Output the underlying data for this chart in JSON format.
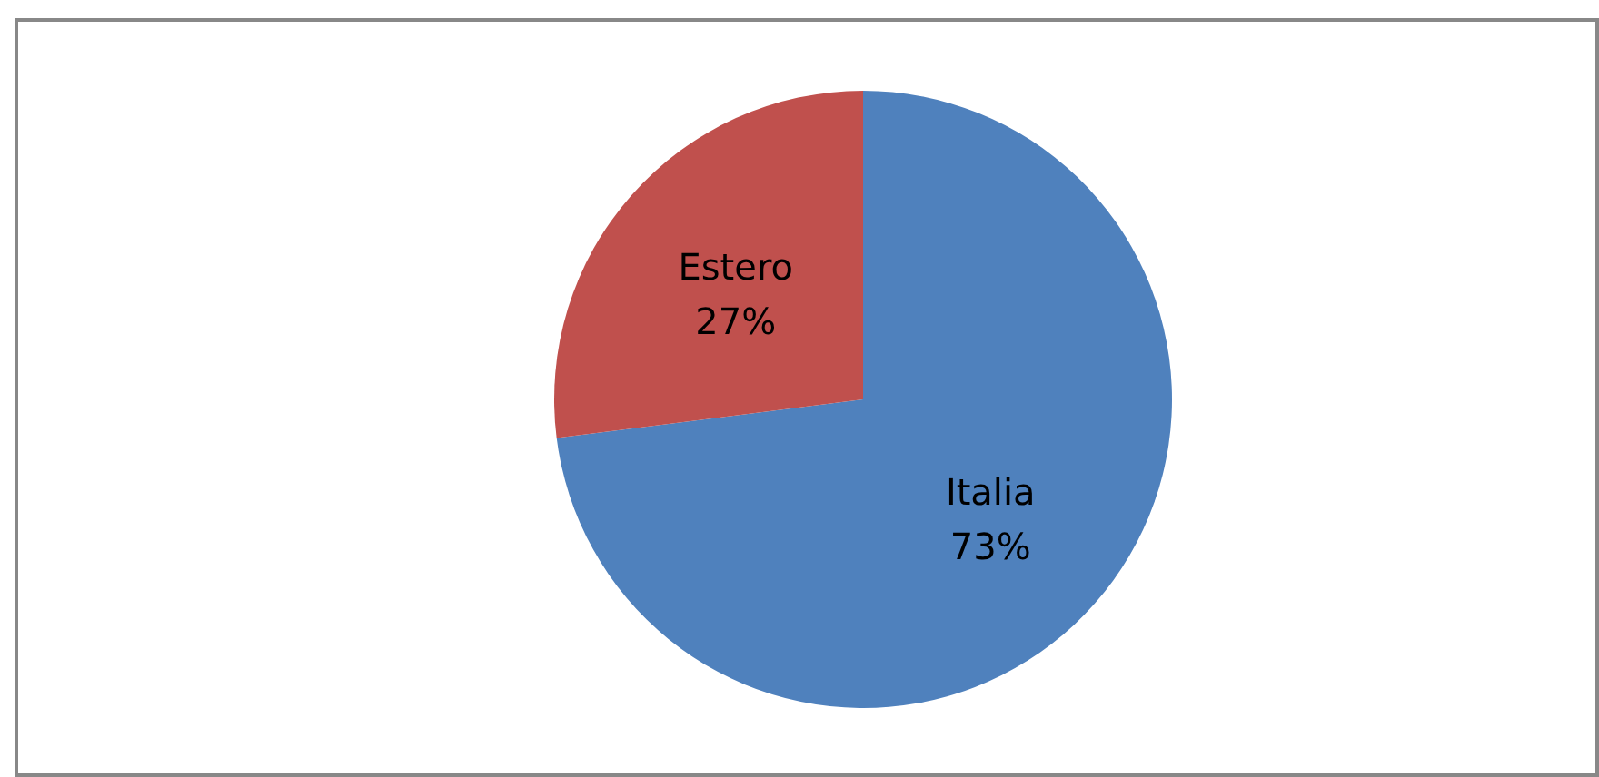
{
  "chart_data": {
    "type": "pie",
    "categories": [
      "Italia",
      "Estero"
    ],
    "values": [
      73,
      27
    ],
    "colors": [
      "#4f81bd",
      "#c0504d"
    ],
    "value_labels": [
      "73%",
      "27%"
    ],
    "legend": false
  }
}
